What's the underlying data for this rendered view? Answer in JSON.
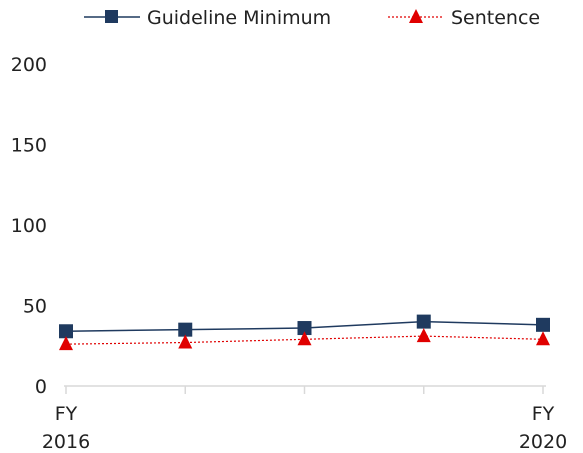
{
  "chart_data": {
    "type": "line",
    "categories": [
      "FY 2016",
      "",
      "",
      "",
      "FY 2020"
    ],
    "x_tick_labels": [
      [
        "FY",
        "2016"
      ],
      [
        "",
        ""
      ],
      [
        "",
        ""
      ],
      [
        "",
        ""
      ],
      [
        "FY",
        "2020"
      ]
    ],
    "ylim": [
      0,
      200
    ],
    "y_ticks": [
      0,
      50,
      100,
      150,
      200
    ],
    "grid": false,
    "legend_position": "top-center",
    "series": [
      {
        "name": "Guideline Minimum",
        "values": [
          34,
          35,
          36,
          40,
          38
        ],
        "color": "#1f3a5f",
        "marker": "square",
        "line": "solid"
      },
      {
        "name": "Sentence",
        "values": [
          26,
          27,
          29,
          31,
          29
        ],
        "color": "#e00000",
        "marker": "triangle",
        "line": "dotted"
      }
    ]
  }
}
